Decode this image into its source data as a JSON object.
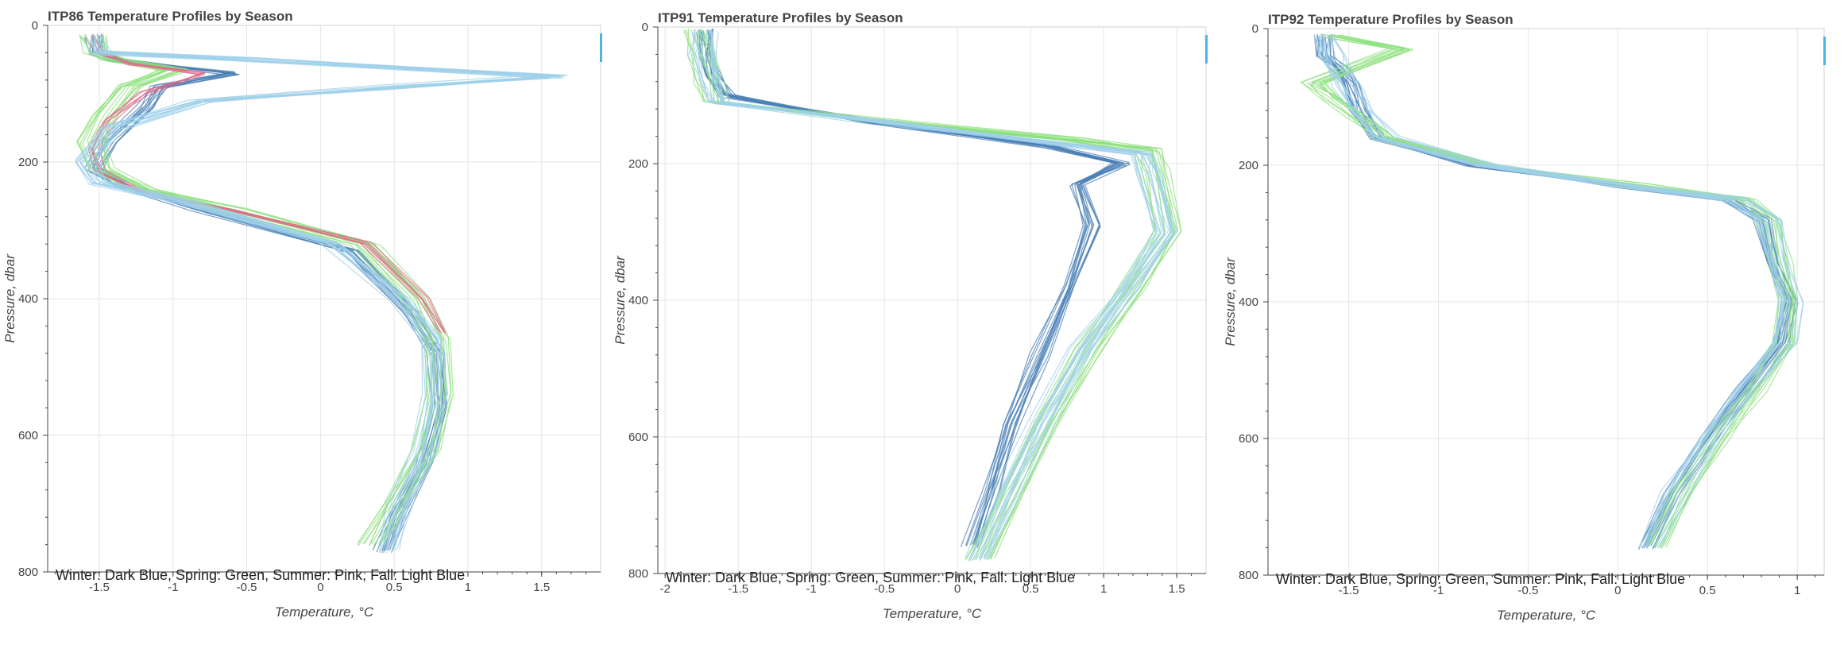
{
  "chart_data": [
    {
      "type": "line",
      "title": "ITP86 Temperature Profiles by Season",
      "xlabel": "Temperature, °C",
      "ylabel": "Pressure, dbar",
      "xlim": [
        -1.85,
        1.9
      ],
      "ylim": [
        0,
        800
      ],
      "y_inverted": true,
      "xticks": [
        -1.5,
        -1,
        -0.5,
        0,
        0.5,
        1,
        1.5
      ],
      "xtick_labels": [
        "-1.5",
        "-1",
        "-0.5",
        "0",
        "0.5",
        "1",
        "1.5"
      ],
      "yticks": [
        0,
        200,
        400,
        600,
        800
      ],
      "ytick_labels": [
        "0",
        "200",
        "400",
        "600",
        "800"
      ],
      "grid": true,
      "legend_note": "Winter: Dark Blue,    Spring: Green,    Summer: Pink,    Fall: Light Blue",
      "series": [
        {
          "color": "#4a7fb5",
          "spread": 0.06,
          "count": 12,
          "x": [
            -1.52,
            -1.52,
            -1.4,
            -0.6,
            -1.1,
            -1.2,
            -1.45,
            -1.55,
            -1.3,
            -0.8,
            0.2,
            0.6,
            0.78,
            0.8,
            0.7,
            0.5,
            0.42
          ],
          "y": [
            15,
            40,
            50,
            70,
            90,
            120,
            170,
            210,
            240,
            270,
            330,
            420,
            480,
            560,
            640,
            720,
            770
          ]
        },
        {
          "color": "#8ee07d",
          "spread": 0.08,
          "count": 14,
          "x": [
            -1.55,
            -1.5,
            -1.4,
            -1.0,
            -1.3,
            -1.45,
            -1.55,
            -1.5,
            -1.2,
            -0.6,
            0.3,
            0.65,
            0.78,
            0.8,
            0.72,
            0.5,
            0.35
          ],
          "y": [
            15,
            40,
            50,
            65,
            90,
            130,
            170,
            210,
            240,
            270,
            320,
            400,
            460,
            540,
            620,
            700,
            760
          ]
        },
        {
          "color": "#e06b8a",
          "spread": 0.05,
          "count": 6,
          "x": [
            -1.55,
            -1.5,
            -1.3,
            -0.8,
            -1.2,
            -1.45,
            -1.55,
            -1.5,
            -1.2,
            -0.6,
            0.3,
            0.7,
            0.82
          ],
          "y": [
            15,
            40,
            55,
            70,
            100,
            140,
            180,
            215,
            245,
            270,
            320,
            400,
            450
          ]
        },
        {
          "color": "#9fd0ea",
          "spread": 0.08,
          "count": 14,
          "x": [
            -1.52,
            -1.5,
            -0.5,
            1.6,
            0.5,
            -0.8,
            -1.4,
            -1.6,
            -1.5,
            -0.9,
            0.1,
            0.55,
            0.75,
            0.78,
            0.72,
            0.55,
            0.45
          ],
          "y": [
            15,
            40,
            50,
            75,
            90,
            110,
            150,
            200,
            230,
            260,
            320,
            400,
            460,
            540,
            620,
            700,
            770
          ]
        }
      ]
    },
    {
      "type": "line",
      "title": "ITP91 Temperature Profiles by Season",
      "xlabel": "Temperature, °C",
      "ylabel": "Pressure, dbar",
      "xlim": [
        -2.05,
        1.7
      ],
      "ylim": [
        0,
        800
      ],
      "y_inverted": true,
      "xticks": [
        -2,
        -1.5,
        -1,
        -0.5,
        0,
        0.5,
        1,
        1.5
      ],
      "xtick_labels": [
        "-2",
        "-1.5",
        "-1",
        "-0.5",
        "0",
        "0.5",
        "1",
        "1.5"
      ],
      "yticks": [
        0,
        200,
        400,
        600,
        800
      ],
      "ytick_labels": [
        "0",
        "200",
        "400",
        "600",
        "800"
      ],
      "grid": true,
      "legend_note": "Winter: Dark Blue,    Spring: Green,    Summer: Pink,    Fall: Light Blue",
      "series": [
        {
          "color": "#4a7fb5",
          "spread": 0.07,
          "count": 14,
          "x": [
            -1.75,
            -1.75,
            -1.7,
            -1.6,
            -0.6,
            0.6,
            1.1,
            0.8,
            0.9,
            0.75,
            0.55,
            0.35,
            0.2,
            0.08
          ],
          "y": [
            5,
            40,
            70,
            100,
            140,
            175,
            200,
            230,
            290,
            380,
            480,
            580,
            680,
            760
          ]
        },
        {
          "color": "#8ee07d",
          "spread": 0.09,
          "count": 14,
          "x": [
            -1.8,
            -1.75,
            -1.7,
            -1.65,
            -0.4,
            0.8,
            1.3,
            1.35,
            1.45,
            1.2,
            0.9,
            0.6,
            0.35,
            0.15
          ],
          "y": [
            5,
            40,
            80,
            110,
            140,
            165,
            180,
            210,
            300,
            380,
            470,
            580,
            690,
            780
          ]
        },
        {
          "color": "#9fd0ea",
          "spread": 0.09,
          "count": 16,
          "x": [
            -1.75,
            -1.75,
            -1.7,
            -1.65,
            -0.5,
            0.7,
            1.25,
            1.3,
            1.4,
            1.15,
            0.85,
            0.55,
            0.3,
            0.12
          ],
          "y": [
            5,
            40,
            75,
            110,
            140,
            170,
            185,
            215,
            300,
            380,
            470,
            580,
            690,
            780
          ]
        }
      ]
    },
    {
      "type": "line",
      "title": "ITP92 Temperature Profiles by Season",
      "xlabel": "Temperature, °C",
      "ylabel": "Pressure, dbar",
      "xlim": [
        -1.95,
        1.15
      ],
      "ylim": [
        0,
        800
      ],
      "y_inverted": true,
      "xticks": [
        -1.5,
        -1,
        -0.5,
        0,
        0.5,
        1
      ],
      "xtick_labels": [
        "-1.5",
        "-1",
        "-0.5",
        "0",
        "0.5",
        "1"
      ],
      "yticks": [
        0,
        200,
        400,
        600,
        800
      ],
      "ytick_labels": [
        "0",
        "200",
        "400",
        "600",
        "800"
      ],
      "grid": true,
      "legend_note": "Winter: Dark Blue,    Spring: Green,    Summer: Pink,    Fall: Light Blue",
      "series": [
        {
          "color": "#4a7fb5",
          "spread": 0.05,
          "count": 14,
          "x": [
            -1.65,
            -1.65,
            -1.55,
            -1.5,
            -1.45,
            -1.35,
            -0.8,
            0.0,
            0.6,
            0.8,
            0.85,
            0.95,
            0.9,
            0.7,
            0.5,
            0.3,
            0.15
          ],
          "y": [
            10,
            40,
            60,
            80,
            120,
            160,
            200,
            230,
            250,
            280,
            340,
            400,
            460,
            530,
            600,
            680,
            760
          ]
        },
        {
          "color": "#8ee07d",
          "spread": 0.06,
          "count": 12,
          "x": [
            -1.6,
            -1.2,
            -1.7,
            -1.6,
            -1.45,
            -1.3,
            -0.7,
            0.1,
            0.7,
            0.85,
            0.9,
            0.95,
            0.92,
            0.75,
            0.55,
            0.35,
            0.2
          ],
          "y": [
            10,
            30,
            80,
            100,
            130,
            160,
            200,
            230,
            250,
            280,
            340,
            400,
            460,
            530,
            600,
            680,
            760
          ]
        },
        {
          "color": "#9fd0ea",
          "spread": 0.07,
          "count": 14,
          "x": [
            -1.62,
            -1.6,
            -1.55,
            -1.5,
            -1.42,
            -1.3,
            -0.75,
            0.05,
            0.65,
            0.85,
            0.9,
            0.98,
            0.93,
            0.72,
            0.52,
            0.33,
            0.18
          ],
          "y": [
            10,
            40,
            60,
            85,
            120,
            160,
            200,
            230,
            250,
            280,
            340,
            400,
            460,
            530,
            600,
            680,
            760
          ]
        }
      ]
    }
  ]
}
